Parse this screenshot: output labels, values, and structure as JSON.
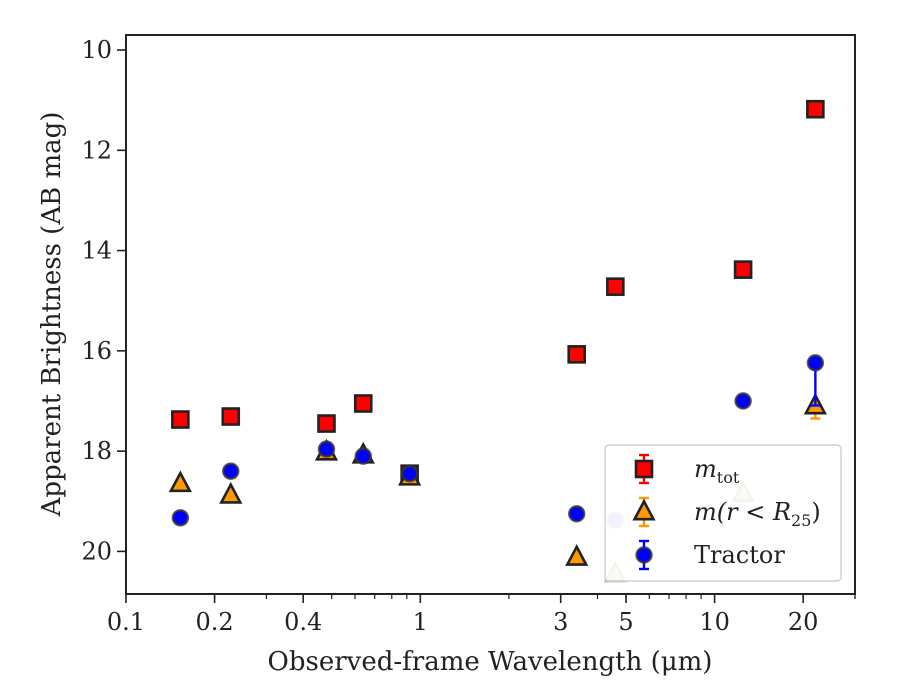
{
  "chart_data": {
    "type": "scatter",
    "title": "",
    "xlabel": "Observed-frame Wavelength (μm)",
    "ylabel": "Apparent Brightness (AB mag)",
    "xscale": "log",
    "xlim": [
      0.1,
      30
    ],
    "ylim": [
      20.85,
      9.7
    ],
    "y_inverted": true,
    "x_ticks": [
      0.1,
      0.2,
      0.4,
      1,
      3,
      5,
      10,
      20
    ],
    "x_tick_labels": [
      "0.1",
      "0.2",
      "0.4",
      "1",
      "3",
      "5",
      "10",
      "20"
    ],
    "y_ticks": [
      10,
      12,
      14,
      16,
      18,
      20
    ],
    "y_tick_labels": [
      "10",
      "12",
      "14",
      "16",
      "18",
      "20"
    ],
    "legend_position": "lower-right",
    "series": [
      {
        "name": "m_tot",
        "label_main": "m",
        "label_sub": "tot",
        "marker": "square",
        "color": "#ff0000",
        "points": [
          {
            "x": 0.153,
            "y": 17.37,
            "alpha": 1
          },
          {
            "x": 0.227,
            "y": 17.31,
            "alpha": 1
          },
          {
            "x": 0.48,
            "y": 17.45,
            "alpha": 1
          },
          {
            "x": 0.64,
            "y": 17.05,
            "alpha": 1
          },
          {
            "x": 0.92,
            "y": 18.45,
            "alpha": 1
          },
          {
            "x": 3.4,
            "y": 16.07,
            "alpha": 1
          },
          {
            "x": 4.6,
            "y": 14.72,
            "alpha": 1
          },
          {
            "x": 12.5,
            "y": 14.38,
            "alpha": 1
          },
          {
            "x": 22.0,
            "y": 11.18,
            "alpha": 1
          }
        ]
      },
      {
        "name": "m(r < R25)",
        "label_prefix": "m(r < R",
        "label_sub": "25",
        "label_suffix": ")",
        "marker": "triangle",
        "color": "#ff9900",
        "points": [
          {
            "x": 0.153,
            "y": 18.65,
            "alpha": 1
          },
          {
            "x": 0.227,
            "y": 18.88,
            "alpha": 1
          },
          {
            "x": 0.48,
            "y": 18.02,
            "alpha": 1
          },
          {
            "x": 0.64,
            "y": 18.08,
            "alpha": 1
          },
          {
            "x": 0.92,
            "y": 18.52,
            "alpha": 1
          },
          {
            "x": 3.4,
            "y": 20.12,
            "alpha": 1
          },
          {
            "x": 4.6,
            "y": 20.45,
            "alpha": 0.3
          },
          {
            "x": 12.5,
            "y": 18.85,
            "alpha": 0.3
          },
          {
            "x": 22.0,
            "y": 17.1,
            "alpha": 1,
            "err": 0.25
          }
        ]
      },
      {
        "name": "Tractor",
        "marker": "circle",
        "color": "#0000ff",
        "points": [
          {
            "x": 0.153,
            "y": 19.33,
            "alpha": 1
          },
          {
            "x": 0.227,
            "y": 18.4,
            "alpha": 1
          },
          {
            "x": 0.48,
            "y": 17.96,
            "alpha": 1
          },
          {
            "x": 0.64,
            "y": 18.1,
            "alpha": 1
          },
          {
            "x": 0.92,
            "y": 18.45,
            "alpha": 1
          },
          {
            "x": 3.4,
            "y": 19.25,
            "alpha": 1
          },
          {
            "x": 4.6,
            "y": 19.38,
            "alpha": 0.3
          },
          {
            "x": 12.5,
            "y": 17.0,
            "alpha": 1
          },
          {
            "x": 22.0,
            "y": 16.24,
            "alpha": 1,
            "err_low": 0.85,
            "err_high": 0.05
          }
        ]
      }
    ]
  }
}
